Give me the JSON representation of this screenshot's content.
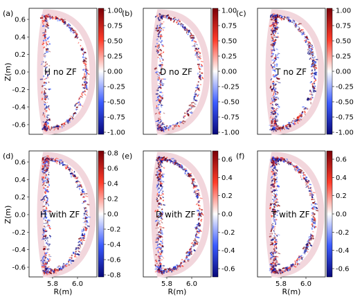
{
  "figure": {
    "axis_labels": {
      "y": "Z(m)",
      "x": "R(m)"
    },
    "y_ticks": [
      "0.6",
      "0.4",
      "0.2",
      "0.0",
      "-0.2",
      "-0.4",
      "-0.6"
    ],
    "x_ticks": [
      "5.8",
      "6.0"
    ],
    "top_colorbar_ticks": [
      "1.00",
      "0.75",
      "0.50",
      "0.25",
      "0.00",
      "-0.25",
      "-0.50",
      "-0.75",
      "-1.00"
    ],
    "colormap": {
      "negative": "#08087a",
      "mid_negative": "#3a5bff",
      "zero": "#ffffff",
      "mid_positive": "#ff3c2a",
      "positive": "#7a0008"
    },
    "panels": [
      {
        "tag": "(a)",
        "label": "H no ZF"
      },
      {
        "tag": "(b)",
        "label": "D no ZF"
      },
      {
        "tag": "(c)",
        "label": "T no ZF"
      },
      {
        "tag": "(d)",
        "label": "H with ZF",
        "colorbar_ticks": [
          "0.8",
          "0.6",
          "0.4",
          "0.2",
          "0.0",
          "-0.2",
          "-0.4",
          "-0.6",
          "-0.8"
        ]
      },
      {
        "tag": "(e)",
        "label": "D with ZF",
        "colorbar_ticks": [
          "0.6",
          "0.4",
          "0.2",
          "0.0",
          "-0.2",
          "-0.4",
          "-0.6"
        ]
      },
      {
        "tag": "(f)",
        "label": "T with ZF",
        "colorbar_ticks": [
          "0.6",
          "0.4",
          "0.2",
          "0.0",
          "-0.2",
          "-0.4",
          "-0.6"
        ]
      }
    ]
  }
}
